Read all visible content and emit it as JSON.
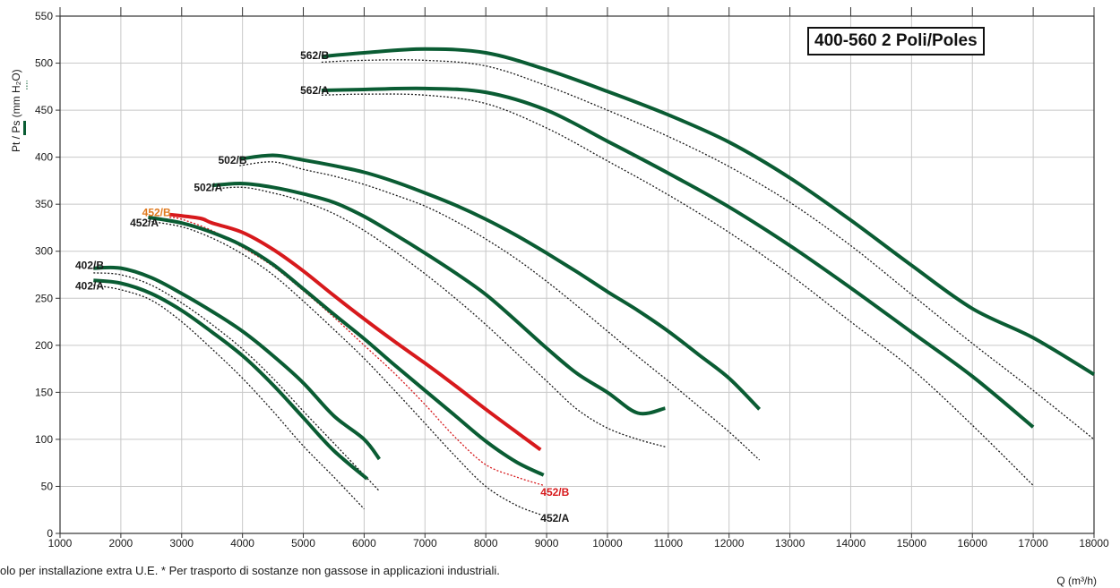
{
  "chart_data": {
    "type": "line",
    "title": "400-560 2 Poli/Poles",
    "ylabel": "Pt / Ps (mm H₂O)",
    "xlabel": "Q (m³/h)",
    "xlim": [
      1000,
      18000
    ],
    "ylim": [
      0,
      550
    ],
    "xticks": [
      1000,
      2000,
      3000,
      4000,
      5000,
      6000,
      7000,
      8000,
      9000,
      10000,
      11000,
      12000,
      13000,
      14000,
      15000,
      16000,
      17000,
      18000
    ],
    "yticks": [
      0,
      50,
      100,
      150,
      200,
      250,
      300,
      350,
      400,
      450,
      500,
      550
    ],
    "grid": true,
    "series": [
      {
        "name": "402/A",
        "color": "#0a5c33",
        "pt": [
          [
            1550,
            269
          ],
          [
            2000,
            266
          ],
          [
            2500,
            255
          ],
          [
            3000,
            237
          ],
          [
            3500,
            214
          ],
          [
            4000,
            189
          ],
          [
            4500,
            158
          ],
          [
            5000,
            123
          ],
          [
            5500,
            88
          ],
          [
            6050,
            58
          ]
        ],
        "ps": [
          [
            1550,
            264
          ],
          [
            2000,
            259
          ],
          [
            2500,
            248
          ],
          [
            3000,
            225
          ],
          [
            3500,
            196
          ],
          [
            4000,
            165
          ],
          [
            4500,
            130
          ],
          [
            5000,
            93
          ],
          [
            5500,
            60
          ],
          [
            6000,
            26
          ]
        ]
      },
      {
        "name": "402/B",
        "color": "#0a5c33",
        "pt": [
          [
            1550,
            282
          ],
          [
            2000,
            282
          ],
          [
            2500,
            272
          ],
          [
            3000,
            255
          ],
          [
            3500,
            236
          ],
          [
            4000,
            215
          ],
          [
            4500,
            189
          ],
          [
            5000,
            160
          ],
          [
            5500,
            125
          ],
          [
            6000,
            100
          ],
          [
            6250,
            79
          ]
        ],
        "ps": [
          [
            1550,
            277
          ],
          [
            2000,
            275
          ],
          [
            2500,
            264
          ],
          [
            3000,
            245
          ],
          [
            3500,
            222
          ],
          [
            4000,
            196
          ],
          [
            4500,
            165
          ],
          [
            5000,
            130
          ],
          [
            5500,
            96
          ],
          [
            6000,
            62
          ],
          [
            6250,
            45
          ]
        ]
      },
      {
        "name": "452/A",
        "color": "#0a5c33",
        "pt": [
          [
            2450,
            336
          ],
          [
            3000,
            330
          ],
          [
            3500,
            320
          ],
          [
            4000,
            306
          ],
          [
            4500,
            286
          ],
          [
            5000,
            260
          ],
          [
            5500,
            233
          ],
          [
            6000,
            207
          ],
          [
            6500,
            179
          ],
          [
            7000,
            152
          ],
          [
            7500,
            125
          ],
          [
            8000,
            98
          ],
          [
            8500,
            76
          ],
          [
            8950,
            62
          ]
        ],
        "ps": [
          [
            2450,
            332
          ],
          [
            3000,
            326
          ],
          [
            3500,
            314
          ],
          [
            4000,
            297
          ],
          [
            4500,
            275
          ],
          [
            5000,
            247
          ],
          [
            5500,
            217
          ],
          [
            6000,
            186
          ],
          [
            6500,
            152
          ],
          [
            7000,
            117
          ],
          [
            7500,
            82
          ],
          [
            8000,
            50
          ],
          [
            8500,
            30
          ],
          [
            8900,
            20
          ]
        ]
      },
      {
        "name": "452/B",
        "color": "#d7191c",
        "label_color": "#e07a1f",
        "pt": [
          [
            2800,
            339
          ],
          [
            3300,
            335
          ],
          [
            3500,
            330
          ],
          [
            4000,
            320
          ],
          [
            4500,
            302
          ],
          [
            5000,
            279
          ],
          [
            5500,
            253
          ],
          [
            6000,
            228
          ],
          [
            6500,
            204
          ],
          [
            7000,
            181
          ],
          [
            7500,
            157
          ],
          [
            8000,
            132
          ],
          [
            8500,
            108
          ],
          [
            8900,
            89
          ]
        ],
        "ps": [
          [
            2800,
            336
          ],
          [
            3000,
            334
          ],
          [
            3500,
            322
          ],
          [
            4000,
            304
          ],
          [
            4500,
            284
          ],
          [
            5000,
            258
          ],
          [
            5500,
            230
          ],
          [
            6000,
            200
          ],
          [
            6500,
            170
          ],
          [
            7000,
            137
          ],
          [
            7500,
            102
          ],
          [
            8000,
            73
          ],
          [
            8500,
            60
          ],
          [
            8950,
            51
          ]
        ]
      },
      {
        "name": "502/A",
        "color": "#0a5c33",
        "pt": [
          [
            3500,
            370
          ],
          [
            4000,
            372
          ],
          [
            4500,
            368
          ],
          [
            5000,
            361
          ],
          [
            5500,
            352
          ],
          [
            6000,
            337
          ],
          [
            6500,
            318
          ],
          [
            7000,
            298
          ],
          [
            7500,
            277
          ],
          [
            8000,
            254
          ],
          [
            8500,
            226
          ],
          [
            9000,
            197
          ],
          [
            9500,
            170
          ],
          [
            10000,
            150
          ],
          [
            10500,
            128
          ],
          [
            10950,
            133
          ]
        ],
        "ps": [
          [
            3500,
            366
          ],
          [
            4000,
            368
          ],
          [
            4500,
            362
          ],
          [
            5000,
            353
          ],
          [
            5500,
            340
          ],
          [
            6000,
            322
          ],
          [
            6500,
            300
          ],
          [
            7000,
            276
          ],
          [
            7500,
            250
          ],
          [
            8000,
            222
          ],
          [
            8500,
            192
          ],
          [
            9000,
            162
          ],
          [
            9500,
            132
          ],
          [
            10000,
            112
          ],
          [
            10500,
            100
          ],
          [
            10950,
            92
          ]
        ]
      },
      {
        "name": "502/B",
        "color": "#0a5c33",
        "pt": [
          [
            3950,
            398
          ],
          [
            4500,
            402
          ],
          [
            5000,
            397
          ],
          [
            5500,
            391
          ],
          [
            6000,
            384
          ],
          [
            6500,
            374
          ],
          [
            7000,
            362
          ],
          [
            7500,
            349
          ],
          [
            8000,
            334
          ],
          [
            8500,
            317
          ],
          [
            9000,
            298
          ],
          [
            9500,
            278
          ],
          [
            10000,
            257
          ],
          [
            10500,
            237
          ],
          [
            11000,
            215
          ],
          [
            11500,
            190
          ],
          [
            12000,
            165
          ],
          [
            12500,
            132
          ]
        ],
        "ps": [
          [
            3950,
            391
          ],
          [
            4500,
            395
          ],
          [
            5000,
            387
          ],
          [
            5500,
            380
          ],
          [
            6000,
            371
          ],
          [
            6500,
            360
          ],
          [
            7000,
            348
          ],
          [
            7500,
            332
          ],
          [
            8000,
            313
          ],
          [
            8500,
            292
          ],
          [
            9000,
            268
          ],
          [
            9500,
            242
          ],
          [
            10000,
            215
          ],
          [
            10500,
            188
          ],
          [
            11000,
            162
          ],
          [
            11500,
            135
          ],
          [
            12000,
            108
          ],
          [
            12500,
            78
          ]
        ]
      },
      {
        "name": "562/A",
        "color": "#0a5c33",
        "pt": [
          [
            5300,
            471
          ],
          [
            6000,
            472
          ],
          [
            7000,
            473
          ],
          [
            8000,
            469
          ],
          [
            9000,
            450
          ],
          [
            10000,
            417
          ],
          [
            11000,
            383
          ],
          [
            12000,
            347
          ],
          [
            13000,
            306
          ],
          [
            14000,
            261
          ],
          [
            15000,
            214
          ],
          [
            16000,
            167
          ],
          [
            17000,
            113
          ]
        ],
        "ps": [
          [
            5300,
            466
          ],
          [
            6000,
            467
          ],
          [
            7000,
            466
          ],
          [
            8000,
            457
          ],
          [
            9000,
            431
          ],
          [
            10000,
            396
          ],
          [
            11000,
            360
          ],
          [
            12000,
            320
          ],
          [
            13000,
            275
          ],
          [
            14000,
            225
          ],
          [
            15000,
            175
          ],
          [
            16000,
            115
          ],
          [
            17000,
            51
          ]
        ]
      },
      {
        "name": "562/B",
        "color": "#0a5c33",
        "pt": [
          [
            5300,
            507
          ],
          [
            6000,
            511
          ],
          [
            7000,
            515
          ],
          [
            8000,
            511
          ],
          [
            9000,
            493
          ],
          [
            10000,
            470
          ],
          [
            11000,
            445
          ],
          [
            12000,
            416
          ],
          [
            13000,
            378
          ],
          [
            14000,
            333
          ],
          [
            15000,
            285
          ],
          [
            16000,
            239
          ],
          [
            17000,
            208
          ],
          [
            18000,
            169
          ]
        ],
        "ps": [
          [
            5300,
            501
          ],
          [
            6000,
            503
          ],
          [
            7000,
            503
          ],
          [
            8000,
            497
          ],
          [
            9000,
            476
          ],
          [
            10000,
            450
          ],
          [
            11000,
            422
          ],
          [
            12000,
            390
          ],
          [
            13000,
            352
          ],
          [
            14000,
            306
          ],
          [
            15000,
            254
          ],
          [
            16000,
            202
          ],
          [
            17000,
            152
          ],
          [
            18000,
            100
          ]
        ]
      }
    ],
    "labels": [
      {
        "text": "562/B",
        "x": 4950,
        "y": 508,
        "color": "#1a1a1a"
      },
      {
        "text": "562/A",
        "x": 4950,
        "y": 471,
        "color": "#1a1a1a"
      },
      {
        "text": "502/B",
        "x": 3600,
        "y": 397,
        "color": "#1a1a1a"
      },
      {
        "text": "502/A",
        "x": 3200,
        "y": 368,
        "color": "#1a1a1a"
      },
      {
        "text": "452/B",
        "x": 2350,
        "y": 341,
        "color": "#e07a1f"
      },
      {
        "text": "452/A",
        "x": 2150,
        "y": 330,
        "color": "#1a1a1a"
      },
      {
        "text": "402/B",
        "x": 1250,
        "y": 285,
        "color": "#1a1a1a"
      },
      {
        "text": "402/A",
        "x": 1250,
        "y": 263,
        "color": "#1a1a1a"
      },
      {
        "text": "452/B",
        "x": 8900,
        "y": 44,
        "color": "#d7191c"
      },
      {
        "text": "452/A",
        "x": 8900,
        "y": 16,
        "color": "#1a1a1a"
      }
    ]
  },
  "notes": {
    "line1": "olo per installazione extra U.E. * Per trasporto di sostanze non gassose in applicazioni industriali."
  }
}
